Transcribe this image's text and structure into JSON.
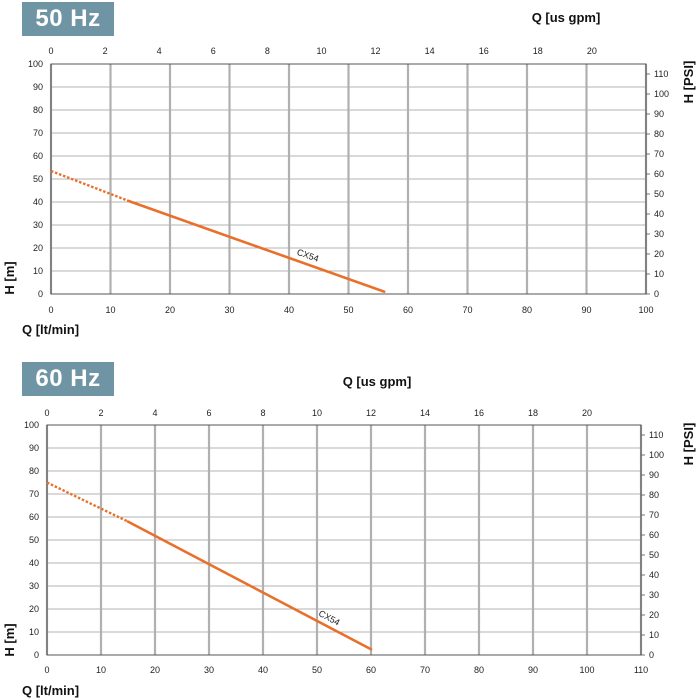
{
  "chart_data": [
    {
      "type": "line",
      "title": "50 Hz",
      "xlabel": "Q [lt/min]",
      "ylabel": "H [m]",
      "x2label": "Q [us gpm]",
      "y2label": "H [PSI]",
      "xlim": [
        0,
        100
      ],
      "ylim": [
        0,
        100
      ],
      "x2lim": [
        0,
        22
      ],
      "y2lim": [
        0,
        115
      ],
      "x_ticks": [
        "0",
        "10",
        "20",
        "30",
        "40",
        "50",
        "60",
        "70",
        "80",
        "90",
        "100"
      ],
      "y_ticks": [
        "0",
        "10",
        "20",
        "30",
        "40",
        "50",
        "60",
        "70",
        "80",
        "90",
        "100"
      ],
      "x2_ticks": [
        "0",
        "2",
        "4",
        "6",
        "8",
        "10",
        "12",
        "14",
        "16",
        "18",
        "20"
      ],
      "y2_ticks": [
        "0",
        "10",
        "20",
        "30",
        "40",
        "50",
        "60",
        "70",
        "80",
        "90",
        "100",
        "110"
      ],
      "grid": true,
      "series": [
        {
          "name": "CX54",
          "color": "#e8702a",
          "dashed_points": [
            [
              0,
              53.5
            ],
            [
              13,
              40.5
            ]
          ],
          "solid_points": [
            [
              13,
              40.5
            ],
            [
              56,
              1
            ]
          ]
        }
      ]
    },
    {
      "type": "line",
      "title": "60 Hz",
      "xlabel": "Q [lt/min]",
      "ylabel": "H [m]",
      "x2label": "Q [us gpm]",
      "y2label": "H [PSI]",
      "xlim": [
        0,
        110
      ],
      "ylim": [
        0,
        100
      ],
      "x2lim": [
        0,
        22
      ],
      "y2lim": [
        0,
        115
      ],
      "x_ticks": [
        "0",
        "10",
        "20",
        "30",
        "40",
        "50",
        "60",
        "70",
        "80",
        "90",
        "100",
        "110"
      ],
      "y_ticks": [
        "0",
        "10",
        "20",
        "30",
        "40",
        "50",
        "60",
        "70",
        "80",
        "90",
        "100"
      ],
      "x2_ticks": [
        "0",
        "2",
        "4",
        "6",
        "8",
        "10",
        "12",
        "14",
        "16",
        "18",
        "20"
      ],
      "y2_ticks": [
        "0",
        "10",
        "20",
        "30",
        "40",
        "50",
        "60",
        "70",
        "80",
        "90",
        "100",
        "110"
      ],
      "grid": true,
      "series": [
        {
          "name": "CX54",
          "color": "#e8702a",
          "dashed_points": [
            [
              0,
              75
            ],
            [
              15,
              58
            ]
          ],
          "solid_points": [
            [
              15,
              58
            ],
            [
              60,
              2.5
            ]
          ]
        }
      ]
    }
  ]
}
